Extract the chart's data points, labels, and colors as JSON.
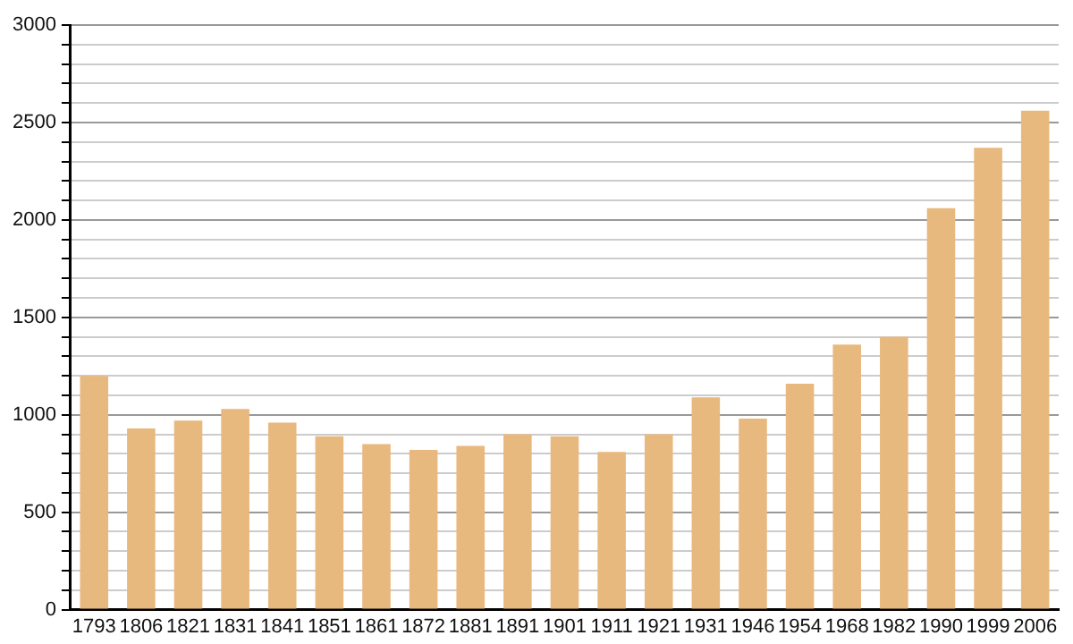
{
  "chart_data": {
    "type": "bar",
    "categories": [
      "1793",
      "1806",
      "1821",
      "1831",
      "1841",
      "1851",
      "1861",
      "1872",
      "1881",
      "1891",
      "1901",
      "1911",
      "1921",
      "1931",
      "1946",
      "1954",
      "1968",
      "1982",
      "1990",
      "1999",
      "2006"
    ],
    "values": [
      1200,
      930,
      970,
      1030,
      960,
      890,
      850,
      820,
      840,
      900,
      890,
      810,
      900,
      1090,
      980,
      1160,
      1360,
      1400,
      2060,
      2370,
      2560
    ],
    "color": "#e8b97e",
    "ylim": [
      0,
      3000
    ],
    "yticks": [
      0,
      {
        "value": 100,
        "label": null
      },
      {
        "value": 200,
        "label": null
      },
      {
        "value": 300,
        "label": null
      },
      {
        "value": 400,
        "label": null
      },
      500,
      {
        "value": 600,
        "label": null
      },
      {
        "value": 700,
        "label": null
      },
      {
        "value": 800,
        "label": null
      },
      {
        "value": 900,
        "label": null
      },
      1000,
      {
        "value": 1100,
        "label": null
      },
      {
        "value": 1200,
        "label": null
      },
      {
        "value": 1300,
        "label": null
      },
      {
        "value": 1400,
        "label": null
      },
      1500,
      {
        "value": 1600,
        "label": null
      },
      {
        "value": 1700,
        "label": null
      },
      {
        "value": 1800,
        "label": null
      },
      {
        "value": 1900,
        "label": null
      },
      2000,
      {
        "value": 2100,
        "label": null
      },
      {
        "value": 2200,
        "label": null
      },
      {
        "value": 2300,
        "label": null
      },
      {
        "value": 2400,
        "label": null
      },
      2500,
      {
        "value": 2600,
        "label": null
      },
      {
        "value": 2700,
        "label": null
      },
      {
        "value": 2800,
        "label": null
      },
      {
        "value": 2900,
        "label": null
      },
      3000
    ],
    "grid": "y"
  }
}
